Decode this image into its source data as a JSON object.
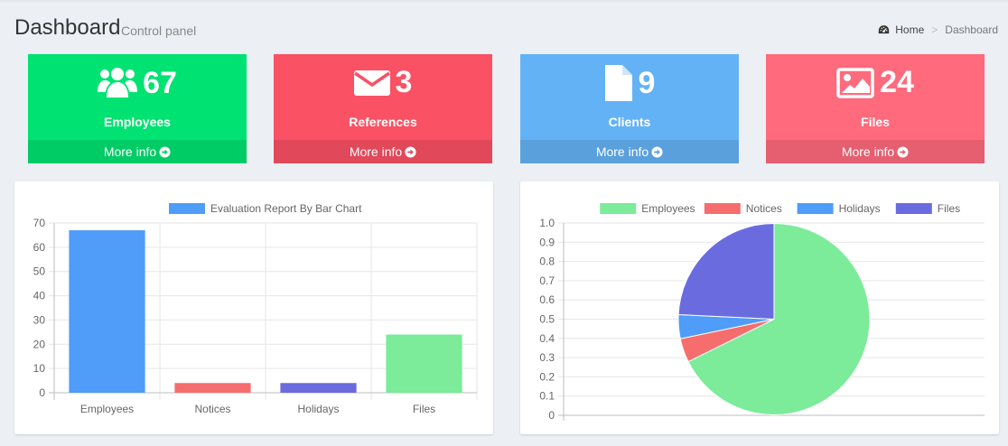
{
  "header": {
    "title": "Dashboard",
    "subtitle": "Control panel",
    "breadcrumb": {
      "home": "Home",
      "separator": ">",
      "current": "Dashboard"
    }
  },
  "boxes": [
    {
      "icon": "users-icon",
      "value": "67",
      "label": "Employees",
      "footer": "More info",
      "color": "#00e372",
      "footer_color": "#00cc66"
    },
    {
      "icon": "envelope-icon",
      "value": "3",
      "label": "References",
      "footer": "More info",
      "color": "#fa5164",
      "footer_color": "#e14859"
    },
    {
      "icon": "file-icon",
      "value": "9",
      "label": "Clients",
      "footer": "More info",
      "color": "#64b2f6",
      "footer_color": "#5aa0dd"
    },
    {
      "icon": "image-icon",
      "value": "24",
      "label": "Files",
      "footer": "More info",
      "color": "#ff6a7d",
      "footer_color": "#e55f70"
    }
  ],
  "chart_data": [
    {
      "type": "bar",
      "legend": [
        "Evaluation Report By Bar Chart"
      ],
      "categories": [
        "Employees",
        "Notices",
        "Holidays",
        "Files"
      ],
      "values": [
        67,
        4,
        4,
        24
      ],
      "colors": [
        "#4f9cf9",
        "#f66d6d",
        "#6b6be0",
        "#7ceb9a"
      ],
      "ylim": [
        0,
        70
      ],
      "yticks": [
        0,
        10,
        20,
        30,
        40,
        50,
        60,
        70
      ],
      "grid": true,
      "legend_position": "top"
    },
    {
      "type": "pie",
      "legend": [
        "Employees",
        "Notices",
        "Holidays",
        "Files"
      ],
      "values": [
        67,
        4,
        4,
        24
      ],
      "colors": [
        "#7ceb9a",
        "#f66d6d",
        "#4f9cf9",
        "#6b6be0"
      ],
      "yticks": [
        "0",
        "0.1",
        "0.2",
        "0.3",
        "0.4",
        "0.5",
        "0.6",
        "0.7",
        "0.8",
        "0.9",
        "1.0"
      ],
      "grid": true,
      "legend_position": "top"
    }
  ]
}
